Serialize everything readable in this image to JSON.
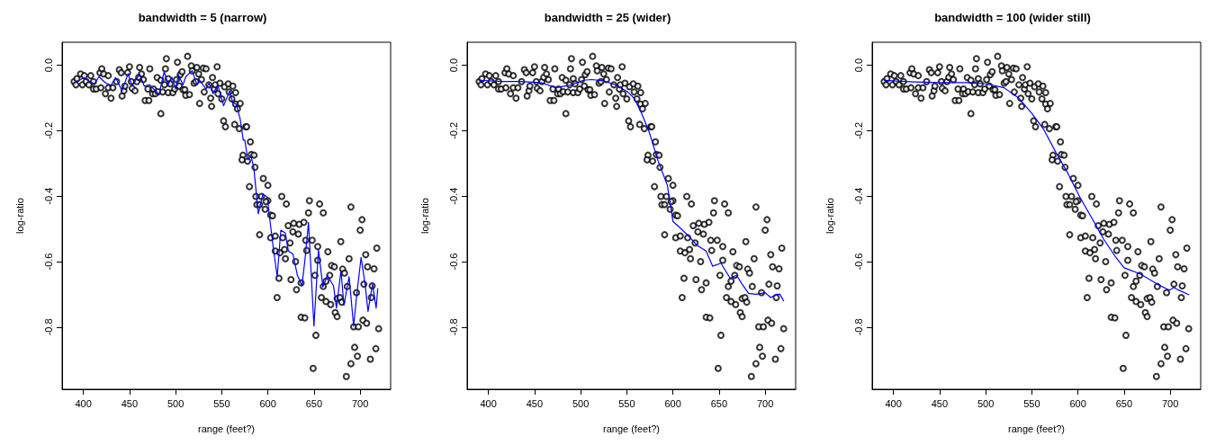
{
  "chart_data": [
    {
      "type": "scatter",
      "title": "bandwidth = 5 (narrow)",
      "xlabel": "range (feet?)",
      "ylabel": "log-ratio",
      "xlim": [
        377,
        733
      ],
      "ylim": [
        -0.99,
        0.07
      ],
      "xticks": [
        400,
        450,
        500,
        550,
        600,
        650,
        700
      ],
      "yticks": [
        {
          "value": -0.8,
          "label": "-0.8"
        },
        {
          "value": -0.6,
          "label": "-0.6"
        },
        {
          "value": -0.4,
          "label": "-0.4"
        },
        {
          "value": -0.2,
          "label": "-0.2"
        },
        {
          "value": 0,
          "label": "0.0"
        }
      ],
      "series": [
        {
          "type": "scatter",
          "marker": "circle",
          "color": "#000000",
          "x": [
            390,
            392,
            393,
            397,
            399,
            401,
            403,
            406,
            408,
            411,
            411,
            414,
            418,
            419,
            420,
            422,
            424,
            427,
            427,
            430,
            432,
            436,
            439,
            441,
            442,
            444,
            445,
            448,
            450,
            452,
            453,
            456,
            458,
            460,
            461,
            463,
            465,
            467,
            470,
            471,
            472,
            475,
            476,
            478,
            480,
            481,
            484,
            484,
            486,
            488,
            489,
            490,
            492,
            492,
            494,
            497,
            499,
            501,
            502,
            504,
            505,
            507,
            508,
            510,
            511,
            513,
            515,
            517,
            518,
            520,
            522,
            523,
            525,
            526,
            528,
            530,
            531,
            533,
            536,
            538,
            539,
            540,
            542,
            543,
            545,
            546,
            548,
            550,
            552,
            553,
            554,
            557,
            558,
            561,
            562,
            564,
            565,
            565,
            567,
            570,
            569,
            576,
            577,
            581,
            573,
            572,
            578,
            582,
            585,
            586,
            580,
            587,
            588,
            591,
            593,
            595,
            597,
            600,
            600,
            598,
            591,
            603,
            605,
            603,
            608,
            608,
            612,
            610,
            613,
            615,
            616,
            618,
            619,
            620,
            622,
            624,
            625,
            627,
            628,
            630,
            631,
            633,
            634,
            636,
            636,
            639,
            640,
            641,
            642,
            644,
            645,
            648,
            649,
            651,
            652,
            654,
            654,
            656,
            658,
            660,
            660,
            663,
            663,
            665,
            667,
            668,
            669,
            672,
            673,
            675,
            675,
            678,
            679,
            680,
            681,
            683,
            685,
            686,
            688,
            690,
            690,
            693,
            694,
            696,
            697,
            698,
            700,
            702,
            703,
            704,
            706,
            707,
            708,
            711,
            712,
            713,
            715,
            717,
            718,
            720
          ],
          "values": [
            -0.05,
            -0.06,
            -0.041,
            -0.027,
            -0.06,
            -0.032,
            -0.05,
            -0.06,
            -0.032,
            -0.05,
            -0.073,
            -0.073,
            -0.023,
            -0.069,
            -0.011,
            -0.027,
            -0.087,
            -0.069,
            -0.032,
            -0.101,
            -0.069,
            -0.05,
            -0.014,
            -0.023,
            -0.094,
            -0.078,
            -0.064,
            -0.023,
            -0.005,
            -0.05,
            -0.071,
            -0.078,
            -0.05,
            -0.037,
            -0.007,
            -0.027,
            -0.044,
            -0.108,
            -0.073,
            -0.108,
            -0.011,
            -0.087,
            -0.073,
            -0.087,
            -0.038,
            -0.081,
            -0.148,
            -0.046,
            -0.082,
            -0.06,
            -0.011,
            0.02,
            -0.041,
            -0.084,
            -0.057,
            -0.084,
            -0.073,
            -0.044,
            0.009,
            -0.064,
            -0.029,
            -0.02,
            -0.075,
            -0.075,
            -0.092,
            0.027,
            -0.09,
            -0.002,
            -0.017,
            -0.055,
            -0.05,
            -0.007,
            -0.027,
            -0.117,
            -0.044,
            -0.009,
            -0.082,
            -0.011,
            -0.06,
            -0.101,
            -0.126,
            -0.038,
            -0.073,
            -0.06,
            -0.005,
            -0.087,
            -0.055,
            -0.103,
            -0.17,
            -0.066,
            -0.188,
            -0.057,
            -0.082,
            -0.103,
            -0.064,
            -0.181,
            -0.084,
            -0.119,
            -0.133,
            -0.117,
            -0.194,
            -0.188,
            -0.188,
            -0.234,
            -0.275,
            -0.289,
            -0.293,
            -0.273,
            -0.275,
            -0.312,
            -0.371,
            -0.401,
            -0.426,
            -0.426,
            -0.401,
            -0.346,
            -0.44,
            -0.367,
            -0.414,
            -0.417,
            -0.518,
            -0.458,
            -0.46,
            -0.527,
            -0.522,
            -0.568,
            -0.651,
            -0.71,
            -0.573,
            -0.401,
            -0.527,
            -0.563,
            -0.591,
            -0.424,
            -0.49,
            -0.543,
            -0.655,
            -0.509,
            -0.483,
            -0.6,
            -0.686,
            -0.516,
            -0.486,
            -0.665,
            -0.77,
            -0.48,
            -0.772,
            -0.535,
            -0.566,
            -0.451,
            -0.414,
            -0.535,
            -0.926,
            -0.642,
            -0.825,
            -0.596,
            -0.554,
            -0.424,
            -0.71,
            -0.451,
            -0.676,
            -0.66,
            -0.722,
            -0.57,
            -0.642,
            -0.731,
            -0.612,
            -0.616,
            -0.756,
            -0.768,
            -0.713,
            -0.71,
            -0.539,
            -0.724,
            -0.623,
            -0.635,
            -0.951,
            -0.676,
            -0.591,
            -0.912,
            -0.433,
            -0.799,
            -0.862,
            -0.695,
            -0.889,
            -0.799,
            -0.504,
            -0.472,
            -0.779,
            -0.669,
            -0.579,
            -0.788,
            -0.616,
            -0.898,
            -0.71,
            -0.674,
            -0.622,
            -0.866,
            -0.559,
            -0.805
          ]
        },
        {
          "type": "line",
          "marker": "none",
          "color": "#0000ff",
          "x": [
            390,
            395.8,
            400.7,
            405.5,
            412,
            417,
            423.5,
            430,
            434.9,
            442,
            448.5,
            452.8,
            461,
            466,
            472,
            479,
            482,
            487.6,
            492,
            496,
            500,
            503,
            508,
            511,
            518,
            523,
            526,
            533,
            536,
            540.7,
            545.6,
            552,
            558.6,
            561.9,
            565.8,
            570,
            573.3,
            575,
            578.2,
            581.5,
            584.7,
            589.6,
            594.5,
            599.4,
            602.7,
            605.9,
            610.1,
            614,
            618.9,
            622.2,
            627.1,
            632,
            636.9,
            640.1,
            644,
            649.9,
            654.8,
            659.6,
            664.5,
            671.1,
            674.3,
            679.2,
            682.4,
            688,
            692.9,
            696.1,
            701,
            705.3,
            708.5,
            713.4,
            717.3,
            719
          ],
          "values": [
            -0.053,
            -0.046,
            -0.038,
            -0.048,
            -0.057,
            -0.035,
            -0.053,
            -0.062,
            -0.038,
            -0.078,
            -0.026,
            -0.064,
            -0.027,
            -0.064,
            -0.06,
            -0.081,
            -0.09,
            -0.02,
            -0.06,
            -0.037,
            -0.073,
            -0.029,
            -0.06,
            -0.035,
            -0.017,
            -0.06,
            -0.046,
            -0.073,
            -0.055,
            -0.087,
            -0.06,
            -0.124,
            -0.078,
            -0.115,
            -0.119,
            -0.165,
            -0.229,
            -0.229,
            -0.289,
            -0.275,
            -0.312,
            -0.454,
            -0.394,
            -0.403,
            -0.486,
            -0.559,
            -0.646,
            -0.504,
            -0.513,
            -0.568,
            -0.577,
            -0.642,
            -0.674,
            -0.596,
            -0.481,
            -0.797,
            -0.564,
            -0.678,
            -0.642,
            -0.674,
            -0.742,
            -0.628,
            -0.733,
            -0.646,
            -0.797,
            -0.706,
            -0.587,
            -0.669,
            -0.752,
            -0.669,
            -0.742,
            -0.683
          ]
        }
      ]
    },
    {
      "type": "scatter",
      "title": "bandwidth = 25 (wider)",
      "xlabel": "range (feet?)",
      "ylabel": "log-ratio",
      "xlim": [
        377,
        733
      ],
      "ylim": [
        -0.99,
        0.07
      ],
      "xticks": [
        400,
        450,
        500,
        550,
        600,
        650,
        700
      ],
      "yticks": [
        {
          "value": -0.8,
          "label": "-0.8"
        },
        {
          "value": -0.6,
          "label": "-0.6"
        },
        {
          "value": -0.4,
          "label": "-0.4"
        },
        {
          "value": -0.2,
          "label": "-0.2"
        },
        {
          "value": 0,
          "label": "0.0"
        }
      ],
      "series": [
        {
          "type": "scatter",
          "marker": "circle",
          "color": "#000000",
          "x": [
            390,
            392,
            393,
            397,
            399,
            401,
            403,
            406,
            408,
            411,
            411,
            414,
            418,
            419,
            420,
            422,
            424,
            427,
            427,
            430,
            432,
            436,
            439,
            441,
            442,
            444,
            445,
            448,
            450,
            452,
            453,
            456,
            458,
            460,
            461,
            463,
            465,
            467,
            470,
            471,
            472,
            475,
            476,
            478,
            480,
            481,
            484,
            484,
            486,
            488,
            489,
            490,
            492,
            492,
            494,
            497,
            499,
            501,
            502,
            504,
            505,
            507,
            508,
            510,
            511,
            513,
            515,
            517,
            518,
            520,
            522,
            523,
            525,
            526,
            528,
            530,
            531,
            533,
            536,
            538,
            539,
            540,
            542,
            543,
            545,
            546,
            548,
            550,
            552,
            553,
            554,
            557,
            558,
            561,
            562,
            564,
            565,
            565,
            567,
            570,
            569,
            576,
            577,
            581,
            573,
            572,
            578,
            582,
            585,
            586,
            580,
            587,
            588,
            591,
            593,
            595,
            597,
            600,
            600,
            598,
            591,
            603,
            605,
            603,
            608,
            608,
            612,
            610,
            613,
            615,
            616,
            618,
            619,
            620,
            622,
            624,
            625,
            627,
            628,
            630,
            631,
            633,
            634,
            636,
            636,
            639,
            640,
            641,
            642,
            644,
            645,
            648,
            649,
            651,
            652,
            654,
            654,
            656,
            658,
            660,
            660,
            663,
            663,
            665,
            667,
            668,
            669,
            672,
            673,
            675,
            675,
            678,
            679,
            680,
            681,
            683,
            685,
            686,
            688,
            690,
            690,
            693,
            694,
            696,
            697,
            698,
            700,
            702,
            703,
            704,
            706,
            707,
            708,
            711,
            712,
            713,
            715,
            717,
            718,
            720
          ],
          "values": [
            -0.05,
            -0.06,
            -0.041,
            -0.027,
            -0.06,
            -0.032,
            -0.05,
            -0.06,
            -0.032,
            -0.05,
            -0.073,
            -0.073,
            -0.023,
            -0.069,
            -0.011,
            -0.027,
            -0.087,
            -0.069,
            -0.032,
            -0.101,
            -0.069,
            -0.05,
            -0.014,
            -0.023,
            -0.094,
            -0.078,
            -0.064,
            -0.023,
            -0.005,
            -0.05,
            -0.071,
            -0.078,
            -0.05,
            -0.037,
            -0.007,
            -0.027,
            -0.044,
            -0.108,
            -0.073,
            -0.108,
            -0.011,
            -0.087,
            -0.073,
            -0.087,
            -0.038,
            -0.081,
            -0.148,
            -0.046,
            -0.082,
            -0.06,
            -0.011,
            0.02,
            -0.041,
            -0.084,
            -0.057,
            -0.084,
            -0.073,
            -0.044,
            0.009,
            -0.064,
            -0.029,
            -0.02,
            -0.075,
            -0.075,
            -0.092,
            0.027,
            -0.09,
            -0.002,
            -0.017,
            -0.055,
            -0.05,
            -0.007,
            -0.027,
            -0.117,
            -0.044,
            -0.009,
            -0.082,
            -0.011,
            -0.06,
            -0.101,
            -0.126,
            -0.038,
            -0.073,
            -0.06,
            -0.005,
            -0.087,
            -0.055,
            -0.103,
            -0.17,
            -0.066,
            -0.188,
            -0.057,
            -0.082,
            -0.103,
            -0.064,
            -0.181,
            -0.084,
            -0.119,
            -0.133,
            -0.117,
            -0.194,
            -0.188,
            -0.188,
            -0.234,
            -0.275,
            -0.289,
            -0.293,
            -0.273,
            -0.275,
            -0.312,
            -0.371,
            -0.401,
            -0.426,
            -0.426,
            -0.401,
            -0.346,
            -0.44,
            -0.367,
            -0.414,
            -0.417,
            -0.518,
            -0.458,
            -0.46,
            -0.527,
            -0.522,
            -0.568,
            -0.651,
            -0.71,
            -0.573,
            -0.401,
            -0.527,
            -0.563,
            -0.591,
            -0.424,
            -0.49,
            -0.543,
            -0.655,
            -0.509,
            -0.483,
            -0.6,
            -0.686,
            -0.516,
            -0.486,
            -0.665,
            -0.77,
            -0.48,
            -0.772,
            -0.535,
            -0.566,
            -0.451,
            -0.414,
            -0.535,
            -0.926,
            -0.642,
            -0.825,
            -0.596,
            -0.554,
            -0.424,
            -0.71,
            -0.451,
            -0.676,
            -0.66,
            -0.722,
            -0.57,
            -0.642,
            -0.731,
            -0.612,
            -0.616,
            -0.756,
            -0.768,
            -0.713,
            -0.71,
            -0.539,
            -0.724,
            -0.623,
            -0.635,
            -0.951,
            -0.676,
            -0.591,
            -0.912,
            -0.433,
            -0.799,
            -0.862,
            -0.695,
            -0.889,
            -0.799,
            -0.504,
            -0.472,
            -0.779,
            -0.669,
            -0.579,
            -0.788,
            -0.616,
            -0.898,
            -0.71,
            -0.674,
            -0.622,
            -0.866,
            -0.559,
            -0.805
          ]
        },
        {
          "type": "line",
          "marker": "none",
          "color": "#0000ff",
          "x": [
            390,
            415,
            434,
            457,
            473,
            490,
            503,
            512,
            525,
            538,
            551,
            558,
            566,
            574,
            584,
            594,
            600,
            607,
            617,
            626,
            636,
            643,
            652,
            662,
            669,
            675,
            682,
            690,
            700,
            706,
            712,
            716,
            720
          ],
          "values": [
            -0.046,
            -0.05,
            -0.05,
            -0.053,
            -0.069,
            -0.06,
            -0.046,
            -0.044,
            -0.048,
            -0.06,
            -0.082,
            -0.101,
            -0.147,
            -0.202,
            -0.293,
            -0.367,
            -0.477,
            -0.495,
            -0.522,
            -0.55,
            -0.568,
            -0.614,
            -0.605,
            -0.651,
            -0.642,
            -0.669,
            -0.697,
            -0.7,
            -0.695,
            -0.71,
            -0.7,
            -0.7,
            -0.72
          ]
        }
      ]
    },
    {
      "type": "scatter",
      "title": "bandwidth = 100 (wider still)",
      "xlabel": "range (feet?)",
      "ylabel": "log-ratio",
      "xlim": [
        377,
        733
      ],
      "ylim": [
        -0.99,
        0.07
      ],
      "xticks": [
        400,
        450,
        500,
        550,
        600,
        650,
        700
      ],
      "yticks": [
        {
          "value": -0.8,
          "label": "-0.8"
        },
        {
          "value": -0.6,
          "label": "-0.6"
        },
        {
          "value": -0.4,
          "label": "-0.4"
        },
        {
          "value": -0.2,
          "label": "-0.2"
        },
        {
          "value": 0,
          "label": "0.0"
        }
      ],
      "series": [
        {
          "type": "scatter",
          "marker": "circle",
          "color": "#000000",
          "x": [
            390,
            392,
            393,
            397,
            399,
            401,
            403,
            406,
            408,
            411,
            411,
            414,
            418,
            419,
            420,
            422,
            424,
            427,
            427,
            430,
            432,
            436,
            439,
            441,
            442,
            444,
            445,
            448,
            450,
            452,
            453,
            456,
            458,
            460,
            461,
            463,
            465,
            467,
            470,
            471,
            472,
            475,
            476,
            478,
            480,
            481,
            484,
            484,
            486,
            488,
            489,
            490,
            492,
            492,
            494,
            497,
            499,
            501,
            502,
            504,
            505,
            507,
            508,
            510,
            511,
            513,
            515,
            517,
            518,
            520,
            522,
            523,
            525,
            526,
            528,
            530,
            531,
            533,
            536,
            538,
            539,
            540,
            542,
            543,
            545,
            546,
            548,
            550,
            552,
            553,
            554,
            557,
            558,
            561,
            562,
            564,
            565,
            565,
            567,
            570,
            569,
            576,
            577,
            581,
            573,
            572,
            578,
            582,
            585,
            586,
            580,
            587,
            588,
            591,
            593,
            595,
            597,
            600,
            600,
            598,
            591,
            603,
            605,
            603,
            608,
            608,
            612,
            610,
            613,
            615,
            616,
            618,
            619,
            620,
            622,
            624,
            625,
            627,
            628,
            630,
            631,
            633,
            634,
            636,
            636,
            639,
            640,
            641,
            642,
            644,
            645,
            648,
            649,
            651,
            652,
            654,
            654,
            656,
            658,
            660,
            660,
            663,
            663,
            665,
            667,
            668,
            669,
            672,
            673,
            675,
            675,
            678,
            679,
            680,
            681,
            683,
            685,
            686,
            688,
            690,
            690,
            693,
            694,
            696,
            697,
            698,
            700,
            702,
            703,
            704,
            706,
            707,
            708,
            711,
            712,
            713,
            715,
            717,
            718,
            720
          ],
          "values": [
            -0.05,
            -0.06,
            -0.041,
            -0.027,
            -0.06,
            -0.032,
            -0.05,
            -0.06,
            -0.032,
            -0.05,
            -0.073,
            -0.073,
            -0.023,
            -0.069,
            -0.011,
            -0.027,
            -0.087,
            -0.069,
            -0.032,
            -0.101,
            -0.069,
            -0.05,
            -0.014,
            -0.023,
            -0.094,
            -0.078,
            -0.064,
            -0.023,
            -0.005,
            -0.05,
            -0.071,
            -0.078,
            -0.05,
            -0.037,
            -0.007,
            -0.027,
            -0.044,
            -0.108,
            -0.073,
            -0.108,
            -0.011,
            -0.087,
            -0.073,
            -0.087,
            -0.038,
            -0.081,
            -0.148,
            -0.046,
            -0.082,
            -0.06,
            -0.011,
            0.02,
            -0.041,
            -0.084,
            -0.057,
            -0.084,
            -0.073,
            -0.044,
            0.009,
            -0.064,
            -0.029,
            -0.02,
            -0.075,
            -0.075,
            -0.092,
            0.027,
            -0.09,
            -0.002,
            -0.017,
            -0.055,
            -0.05,
            -0.007,
            -0.027,
            -0.117,
            -0.044,
            -0.009,
            -0.082,
            -0.011,
            -0.06,
            -0.101,
            -0.126,
            -0.038,
            -0.073,
            -0.06,
            -0.005,
            -0.087,
            -0.055,
            -0.103,
            -0.17,
            -0.066,
            -0.188,
            -0.057,
            -0.082,
            -0.103,
            -0.064,
            -0.181,
            -0.084,
            -0.119,
            -0.133,
            -0.117,
            -0.194,
            -0.188,
            -0.188,
            -0.234,
            -0.275,
            -0.289,
            -0.293,
            -0.273,
            -0.275,
            -0.312,
            -0.371,
            -0.401,
            -0.426,
            -0.426,
            -0.401,
            -0.346,
            -0.44,
            -0.367,
            -0.414,
            -0.417,
            -0.518,
            -0.458,
            -0.46,
            -0.527,
            -0.522,
            -0.568,
            -0.651,
            -0.71,
            -0.573,
            -0.401,
            -0.527,
            -0.563,
            -0.591,
            -0.424,
            -0.49,
            -0.543,
            -0.655,
            -0.509,
            -0.483,
            -0.6,
            -0.686,
            -0.516,
            -0.486,
            -0.665,
            -0.77,
            -0.48,
            -0.772,
            -0.535,
            -0.566,
            -0.451,
            -0.414,
            -0.535,
            -0.926,
            -0.642,
            -0.825,
            -0.596,
            -0.554,
            -0.424,
            -0.71,
            -0.451,
            -0.676,
            -0.66,
            -0.722,
            -0.57,
            -0.642,
            -0.731,
            -0.612,
            -0.616,
            -0.756,
            -0.768,
            -0.713,
            -0.71,
            -0.539,
            -0.724,
            -0.623,
            -0.635,
            -0.951,
            -0.676,
            -0.591,
            -0.912,
            -0.433,
            -0.799,
            -0.862,
            -0.695,
            -0.889,
            -0.799,
            -0.504,
            -0.472,
            -0.779,
            -0.669,
            -0.579,
            -0.788,
            -0.616,
            -0.898,
            -0.71,
            -0.674,
            -0.622,
            -0.866,
            -0.559,
            -0.805
          ]
        },
        {
          "type": "line",
          "marker": "none",
          "color": "#0000ff",
          "x": [
            390,
            400,
            422,
            449,
            478,
            501,
            520,
            536,
            550,
            563,
            576,
            589,
            602,
            615,
            628,
            641,
            650,
            667,
            686,
            696,
            699,
            704,
            709,
            720
          ],
          "values": [
            -0.046,
            -0.048,
            -0.051,
            -0.053,
            -0.053,
            -0.057,
            -0.069,
            -0.101,
            -0.147,
            -0.197,
            -0.266,
            -0.33,
            -0.403,
            -0.467,
            -0.532,
            -0.587,
            -0.619,
            -0.637,
            -0.669,
            -0.683,
            -0.687,
            -0.679,
            -0.687,
            -0.701
          ]
        }
      ]
    }
  ]
}
